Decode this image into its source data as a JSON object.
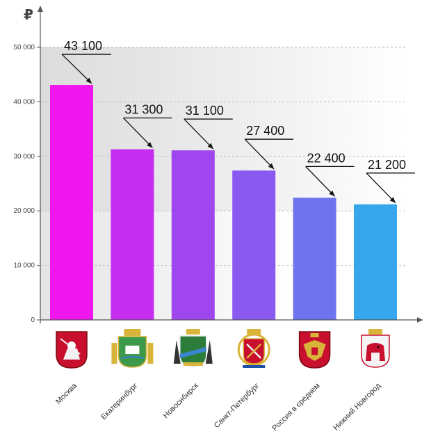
{
  "chart_data": {
    "type": "bar",
    "currency_symbol": "₽",
    "categories": [
      "Москва",
      "Екатеринбург",
      "Новосибирск",
      "Санкт-Петербург",
      "Россия в среднем",
      "Нижний Новгород"
    ],
    "values": [
      43100,
      31300,
      31100,
      27400,
      22400,
      21200
    ],
    "value_labels": [
      "43 100",
      "31 300",
      "31 100",
      "27 400",
      "22 400",
      "21 200"
    ],
    "ylim": [
      0,
      50000
    ],
    "yticks": [
      0,
      10000,
      20000,
      30000,
      40000,
      50000
    ],
    "ytick_labels": [
      "0",
      "10 000",
      "20 000",
      "30 000",
      "40 000",
      "50 000"
    ],
    "grid": true,
    "emblems": [
      "moscow-coat-of-arms",
      "yekaterinburg-coat-of-arms",
      "novosibirsk-coat-of-arms",
      "saint-petersburg-coat-of-arms",
      "russia-coat-of-arms",
      "nizhny-novgorod-coat-of-arms"
    ],
    "colors": {
      "bar_gradient": [
        "#f017ee",
        "#c52ef1",
        "#a046ef",
        "#8a5af0",
        "#6f74ee",
        "#36a7ec"
      ],
      "axis": "#555555",
      "grid": "#bbbbbb",
      "emblem_red": "#c8102e",
      "emblem_gold": "#d9b43a",
      "emblem_blue": "#1f4fa8"
    }
  }
}
